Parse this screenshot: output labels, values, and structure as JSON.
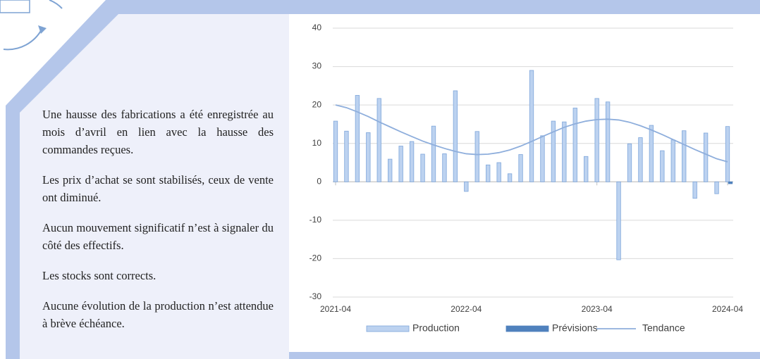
{
  "text_panel": {
    "paragraphs": [
      "Une hausse des fabrications a été enregistrée au mois d’avril en lien avec la hausse des commandes reçues.",
      "Les prix d’achat se sont stabilisés, ceux de vente ont diminué.",
      "Aucun mouvement significatif n’est à signaler du côté des effectifs.",
      "Les stocks sont corrects.",
      "Aucune évolution de la production n’est attendue à brève échéance."
    ]
  },
  "chart_data": {
    "type": "bar",
    "categories": [
      "2021-04",
      null,
      null,
      null,
      null,
      null,
      null,
      null,
      null,
      null,
      null,
      null,
      "2022-04",
      null,
      null,
      null,
      null,
      null,
      null,
      null,
      null,
      null,
      null,
      null,
      "2023-04",
      null,
      null,
      null,
      null,
      null,
      null,
      null,
      null,
      null,
      null,
      null,
      "2024-04"
    ],
    "series": [
      {
        "name": "Production",
        "type": "bar",
        "color": "#bcd2f0",
        "values": [
          15.8,
          13.2,
          22.5,
          12.8,
          21.7,
          5.9,
          9.3,
          10.5,
          7.2,
          14.5,
          7.3,
          23.7,
          -2.5,
          13.1,
          4.4,
          5,
          2.1,
          7.1,
          29,
          12,
          15.8,
          15.6,
          19.2,
          6.6,
          21.7,
          20.8,
          -20.3,
          9.9,
          11.5,
          14.7,
          8.1,
          10.9,
          13.3,
          -4.3,
          12.7,
          -3.1,
          14.4
        ]
      },
      {
        "name": "Prévisions",
        "type": "bar",
        "color": "#4f81bd",
        "values": [
          null,
          null,
          null,
          null,
          null,
          null,
          null,
          null,
          null,
          null,
          null,
          null,
          null,
          null,
          null,
          null,
          null,
          null,
          null,
          null,
          null,
          null,
          null,
          null,
          null,
          null,
          null,
          null,
          null,
          null,
          null,
          null,
          null,
          null,
          null,
          null,
          -0.5
        ]
      },
      {
        "name": "Tendance",
        "type": "line",
        "color": "#8eaedc",
        "values": [
          20,
          19.3,
          18.2,
          17,
          15.6,
          14.3,
          13,
          11.8,
          10.6,
          9.6,
          8.7,
          7.9,
          7.3,
          7.1,
          7.2,
          7.6,
          8.3,
          9.3,
          10.5,
          11.8,
          13,
          14.2,
          15.1,
          15.8,
          16.2,
          16.3,
          16.1,
          15.5,
          14.6,
          13.5,
          12.3,
          11,
          9.7,
          8.4,
          7.2,
          6,
          5.2
        ]
      }
    ],
    "ylim": [
      -30,
      40
    ],
    "yticks": [
      -30,
      -20,
      -10,
      0,
      10,
      20,
      30,
      40
    ],
    "grid": true,
    "legend": "bottom"
  }
}
